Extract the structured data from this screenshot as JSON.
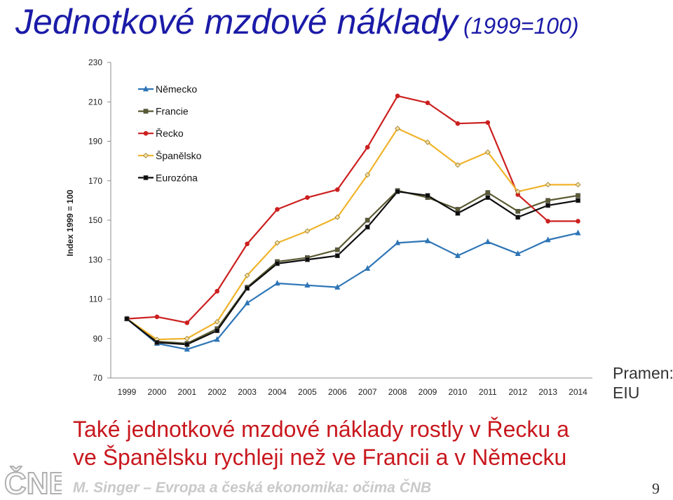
{
  "slide": {
    "title": "Jednotkové mzdové náklady",
    "title_suffix": "(1999=100)",
    "source_line1": "Pramen:",
    "source_line2": "EIU",
    "caption_line1": "Také jednotkové mzdové náklady rostly v Řecku a",
    "caption_line2": "ve Španělsku rychleji než ve Francii a v Německu",
    "footer": "M. Singer – Evropa a česká ekonomika: očima ČNB",
    "page_number": "9",
    "logo_text": "ČNB"
  },
  "chart_data": {
    "type": "line",
    "title": "",
    "xlabel": "",
    "ylabel": "Index 1999 = 100",
    "ylim": [
      70,
      230
    ],
    "yticks": [
      70,
      90,
      110,
      130,
      150,
      170,
      190,
      210,
      230
    ],
    "grid": false,
    "legend_position": "top-left",
    "categories": [
      "1999",
      "2000",
      "2001",
      "2002",
      "2003",
      "2004",
      "2005",
      "2006",
      "2007",
      "2008",
      "2009",
      "2010",
      "2011",
      "2012",
      "2013",
      "2014"
    ],
    "series": [
      {
        "name": "Německo",
        "color": "#2e75b6",
        "marker": "triangle",
        "values": [
          100,
          87.5,
          84.5,
          89.5,
          108,
          118,
          117,
          116,
          125.5,
          138.5,
          139.5,
          132,
          139,
          133,
          140,
          143.5
        ]
      },
      {
        "name": "Francie",
        "color": "#5a5a32",
        "marker": "square",
        "values": [
          100,
          88.5,
          87.5,
          95,
          116,
          129,
          131,
          135,
          150,
          165,
          161.5,
          155.5,
          164,
          154.5,
          160,
          162.5
        ]
      },
      {
        "name": "Řecko",
        "color": "#cc1f1f",
        "marker": "circle",
        "values": [
          100,
          101,
          98,
          114,
          138,
          155.5,
          161.5,
          165.5,
          187,
          213,
          209.5,
          199,
          199.5,
          163,
          149.5,
          149.5
        ]
      },
      {
        "name": "Španělsko",
        "color": "#f0b32a",
        "marker": "diamond",
        "values": [
          100,
          89.5,
          90,
          98.5,
          122,
          138.5,
          144.5,
          151.5,
          173,
          196.5,
          189.5,
          178,
          184.5,
          164.5,
          168,
          168
        ]
      },
      {
        "name": "Eurozóna",
        "color": "#0d0d0d",
        "marker": "square",
        "values": [
          100,
          88,
          87,
          94,
          115.5,
          128,
          130,
          132,
          146.5,
          164.5,
          162.5,
          153.5,
          161.5,
          151.5,
          157.5,
          160
        ]
      }
    ]
  }
}
